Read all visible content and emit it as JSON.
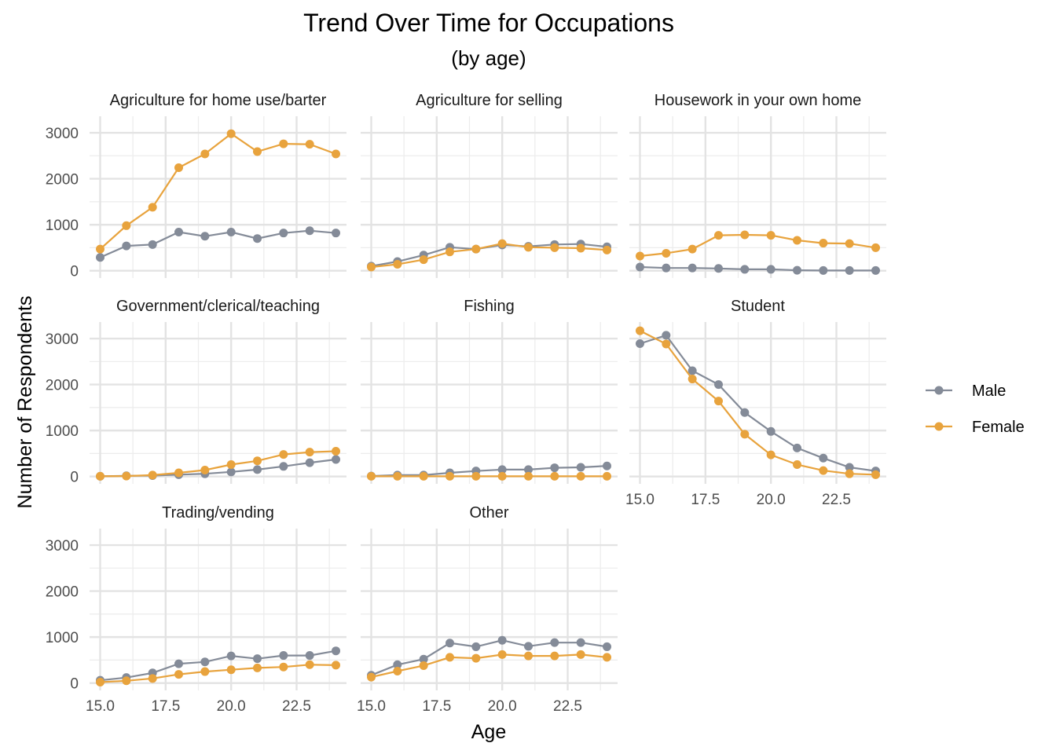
{
  "chart_data": {
    "type": "line",
    "title": "Trend Over Time for Occupations",
    "subtitle": "(by age)",
    "xlabel": "Age",
    "ylabel": "Number of Respondents",
    "x": [
      15,
      16,
      17,
      18,
      19,
      20,
      21,
      22,
      23,
      24
    ],
    "xlim": [
      15,
      24
    ],
    "ylim": [
      0,
      3200
    ],
    "x_ticks": [
      "15.0",
      "17.5",
      "20.0",
      "22.5"
    ],
    "y_ticks": [
      "0",
      "1000",
      "2000",
      "3000"
    ],
    "grid": true,
    "legend": {
      "position": "right",
      "entries": [
        {
          "name": "Male",
          "color": "#848b98"
        },
        {
          "name": "Female",
          "color": "#e8a33d"
        }
      ]
    },
    "panels": [
      {
        "title": "Agriculture for home use/barter",
        "series": [
          {
            "name": "Male",
            "values": [
              290,
              540,
              570,
              840,
              750,
              840,
              700,
              820,
              870,
              820
            ]
          },
          {
            "name": "Female",
            "values": [
              470,
              980,
              1380,
              2240,
              2540,
              2980,
              2590,
              2760,
              2750,
              2540
            ]
          }
        ]
      },
      {
        "title": "Agriculture for selling",
        "series": [
          {
            "name": "Male",
            "values": [
              100,
              200,
              340,
              510,
              470,
              560,
              530,
              570,
              580,
              520
            ]
          },
          {
            "name": "Female",
            "values": [
              80,
              140,
              240,
              410,
              470,
              590,
              510,
              500,
              490,
              450
            ]
          }
        ]
      },
      {
        "title": "Housework in your own home",
        "series": [
          {
            "name": "Male",
            "values": [
              80,
              60,
              60,
              50,
              30,
              30,
              10,
              5,
              5,
              5
            ]
          },
          {
            "name": "Female",
            "values": [
              320,
              380,
              470,
              770,
              780,
              770,
              660,
              600,
              590,
              500
            ]
          }
        ]
      },
      {
        "title": "Government/clerical/teaching",
        "series": [
          {
            "name": "Male",
            "values": [
              5,
              15,
              20,
              40,
              60,
              100,
              150,
              220,
              300,
              370
            ]
          },
          {
            "name": "Female",
            "values": [
              5,
              10,
              30,
              80,
              140,
              260,
              340,
              480,
              530,
              550
            ]
          }
        ]
      },
      {
        "title": "Fishing",
        "series": [
          {
            "name": "Male",
            "values": [
              10,
              30,
              30,
              80,
              120,
              150,
              150,
              190,
              200,
              230
            ]
          },
          {
            "name": "Female",
            "values": [
              5,
              5,
              5,
              5,
              5,
              5,
              5,
              5,
              5,
              5
            ]
          }
        ]
      },
      {
        "title": "Student",
        "series": [
          {
            "name": "Male",
            "values": [
              2890,
              3070,
              2300,
              2000,
              1390,
              980,
              620,
              400,
              200,
              120
            ]
          },
          {
            "name": "Female",
            "values": [
              3170,
              2880,
              2120,
              1640,
              920,
              470,
              260,
              130,
              60,
              40
            ]
          }
        ]
      },
      {
        "title": "Trading/vending",
        "series": [
          {
            "name": "Male",
            "values": [
              60,
              120,
              220,
              420,
              460,
              590,
              530,
              600,
              600,
              700
            ]
          },
          {
            "name": "Female",
            "values": [
              20,
              50,
              100,
              190,
              250,
              290,
              330,
              350,
              400,
              390
            ]
          }
        ]
      },
      {
        "title": "Other",
        "series": [
          {
            "name": "Male",
            "values": [
              170,
              400,
              520,
              870,
              790,
              930,
              800,
              880,
              880,
              790
            ]
          },
          {
            "name": "Female",
            "values": [
              130,
              260,
              380,
              560,
              540,
              620,
              590,
              590,
              620,
              560
            ]
          }
        ]
      }
    ]
  }
}
